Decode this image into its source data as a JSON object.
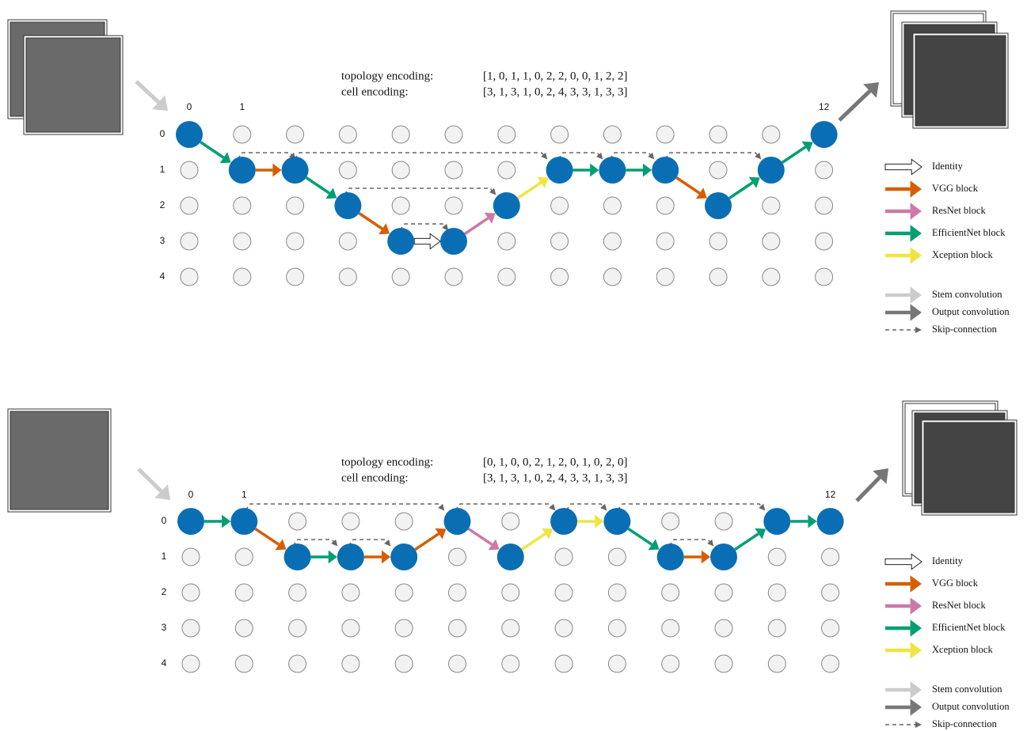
{
  "panels": [
    {
      "topology_label": "topology encoding:",
      "topology_encoding": "[1, 0, 1, 1, 0, 2, 2, 0, 0, 1, 2, 2]",
      "cell_label": "cell encoding:",
      "cell_encoding": "[3, 1, 3, 1, 0, 2, 4, 3, 3, 1, 3, 3]",
      "column_labels": [
        "0",
        "1",
        "12"
      ],
      "row_labels": [
        "0",
        "1",
        "2",
        "3",
        "4"
      ],
      "legend": [
        "Identity",
        "VGG block",
        "ResNet block",
        "EfficientNet block",
        "Xception block",
        "Stem convolution",
        "Output convolution",
        "Skip-connection"
      ]
    },
    {
      "topology_label": "topology encoding:",
      "topology_encoding": "[0, 1, 0, 0, 2, 1, 2, 0, 1, 0, 2, 0]",
      "cell_label": "cell encoding:",
      "cell_encoding": "[3, 1, 3, 1, 0, 2, 4, 3, 3, 1, 3, 3]",
      "column_labels": [
        "0",
        "1",
        "12"
      ],
      "row_labels": [
        "0",
        "1",
        "2",
        "3",
        "4"
      ],
      "legend": [
        "Identity",
        "VGG block",
        "ResNet block",
        "EfficientNet block",
        "Xception block",
        "Stem convolution",
        "Output convolution",
        "Skip-connection"
      ]
    }
  ]
}
